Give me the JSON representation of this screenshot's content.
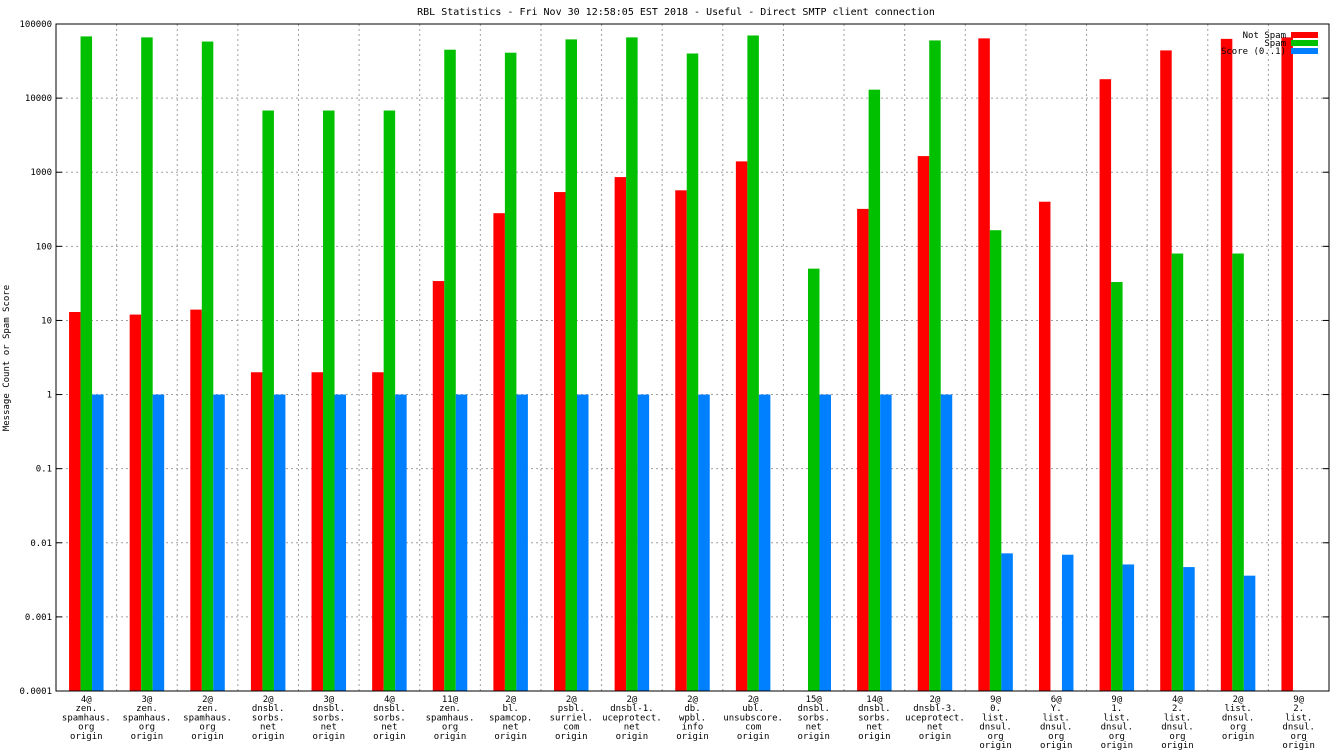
{
  "chart_data": {
    "type": "bar",
    "title": "RBL Statistics - Fri Nov 30 12:58:05 EST 2018 - Useful - Direct SMTP client connection",
    "ylabel": "Message Count or Spam Score",
    "xlabel": "",
    "yscale": "log",
    "ylim": [
      0.0001,
      100000
    ],
    "grid": true,
    "legend_position": "top-right",
    "yticks": [
      "0.0001",
      "0.001",
      "0.01",
      "0.1",
      "1",
      "10",
      "100",
      "1000",
      "10000",
      "100000"
    ],
    "categories": [
      [
        "4@",
        "zen.",
        "spamhaus.",
        "org",
        "origin"
      ],
      [
        "3@",
        "zen.",
        "spamhaus.",
        "org",
        "origin"
      ],
      [
        "2@",
        "zen.",
        "spamhaus.",
        "org",
        "origin"
      ],
      [
        "2@",
        "dnsbl.",
        "sorbs.",
        "net",
        "origin"
      ],
      [
        "3@",
        "dnsbl.",
        "sorbs.",
        "net",
        "origin"
      ],
      [
        "4@",
        "dnsbl.",
        "sorbs.",
        "net",
        "origin"
      ],
      [
        "11@",
        "zen.",
        "spamhaus.",
        "org",
        "origin"
      ],
      [
        "2@",
        "bl.",
        "spamcop.",
        "net",
        "origin"
      ],
      [
        "2@",
        "psbl.",
        "surriel.",
        "com",
        "origin"
      ],
      [
        "2@",
        "dnsbl-1.",
        "uceprotect.",
        "net",
        "origin"
      ],
      [
        "2@",
        "db.",
        "wpbl.",
        "info",
        "origin"
      ],
      [
        "2@",
        "ubl.",
        "unsubscore.",
        "com",
        "origin"
      ],
      [
        "15@",
        "dnsbl.",
        "sorbs.",
        "net",
        "origin"
      ],
      [
        "14@",
        "dnsbl.",
        "sorbs.",
        "net",
        "origin"
      ],
      [
        "2@",
        "dnsbl-3.",
        "uceprotect.",
        "net",
        "origin"
      ],
      [
        "9@",
        "0.",
        "list.",
        "dnsul.",
        "org",
        "origin"
      ],
      [
        "6@",
        "Y.",
        "list.",
        "dnsul.",
        "org",
        "origin"
      ],
      [
        "9@",
        "1.",
        "list.",
        "dnsul.",
        "org",
        "origin"
      ],
      [
        "4@",
        "2.",
        "list.",
        "dnsul.",
        "org",
        "origin"
      ],
      [
        "2@",
        "list.",
        "dnsul.",
        "org",
        "origin"
      ],
      [
        "9@",
        "2.",
        "list.",
        "dnsul.",
        "org",
        "origin"
      ]
    ],
    "series": [
      {
        "name": "Not Spam",
        "color": "#ff0000",
        "values": [
          13,
          12,
          14,
          2,
          2,
          2,
          34,
          280,
          540,
          860,
          570,
          1400,
          null,
          320,
          1650,
          64000,
          400,
          18000,
          44000,
          63000,
          66000
        ]
      },
      {
        "name": "Spam",
        "color": "#00c000",
        "values": [
          68000,
          66000,
          58000,
          6800,
          6800,
          6800,
          45000,
          41000,
          62000,
          66000,
          40000,
          70000,
          50,
          13000,
          60000,
          165,
          null,
          33,
          80,
          80,
          null
        ]
      },
      {
        "name": "Score (0..1)",
        "color": "#0080ff",
        "values": [
          1,
          1,
          1,
          1,
          1,
          1,
          1,
          1,
          1,
          1,
          1,
          1,
          1,
          1,
          1,
          0.0072,
          0.0069,
          0.0051,
          0.0047,
          0.0036,
          null
        ]
      }
    ]
  }
}
